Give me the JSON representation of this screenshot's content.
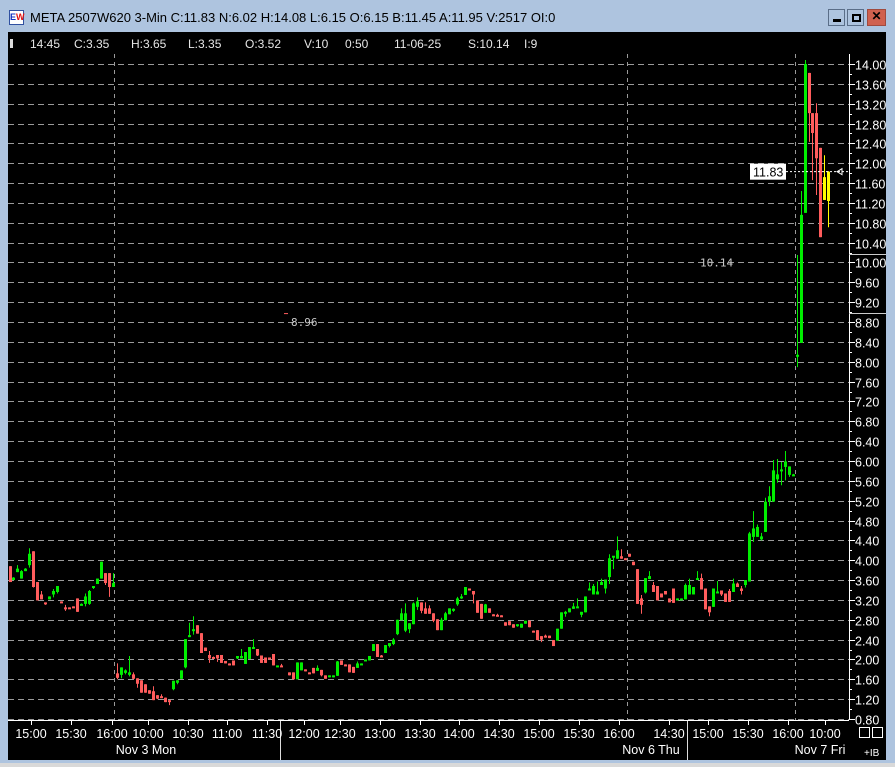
{
  "window": {
    "title": "META 2507W620 3-Min C:11.83 N:6.02 H:14.08 L:6.15 O:6.15 B:11.45 A:11.95 V:2517 OI:0",
    "icon_text": [
      "E",
      "W"
    ],
    "buttons": {
      "minimize": "minimize-icon",
      "maximize": "maximize-icon",
      "close": "✕"
    }
  },
  "infobar": {
    "time": "14:45",
    "close": "C:3.35",
    "high": "H:3.65",
    "low": "L:3.35",
    "open": "O:3.52",
    "volume": "V:10",
    "elapsed": "0:50",
    "date": "11-06-25",
    "strike": "S:10.14",
    "index": "I:9"
  },
  "colors": {
    "up": "#00ee00",
    "down": "#ff5c5c",
    "current": "#ffff00",
    "grid": "#9a9a9a",
    "background": "#000000"
  },
  "price_axis": {
    "labels": [
      "14.00",
      "13.60",
      "13.20",
      "12.80",
      "12.40",
      "12.00",
      "11.60",
      "11.20",
      "10.80",
      "10.40",
      "10.00",
      "9.60",
      "9.20",
      "8.80",
      "8.40",
      "8.00",
      "7.60",
      "7.20",
      "6.80",
      "6.40",
      "6.00",
      "5.60",
      "5.20",
      "4.80",
      "4.40",
      "4.00",
      "3.60",
      "3.20",
      "2.80",
      "2.40",
      "2.00",
      "1.60",
      "1.20",
      "0.80"
    ],
    "current_price": "11.83"
  },
  "annotations": [
    {
      "text": "8.96",
      "price": 8.8
    },
    {
      "text": "10.14",
      "price": 10.0
    }
  ],
  "time_axis": {
    "labels": [
      "15:00",
      "15:30",
      "16:00",
      "10:00",
      "10:30",
      "11:00",
      "11:30",
      "12:00",
      "12:30",
      "13:00",
      "13:30",
      "14:00",
      "14:30",
      "15:00",
      "15:30",
      "16:00",
      "14:30",
      "15:00",
      "15:30",
      "16:00",
      "10:00"
    ],
    "dates": [
      "Nov 3 Mon",
      "Nov 6 Thu",
      "Nov 7 Fri"
    ],
    "corner_button": "+IB"
  },
  "chart_data": {
    "type": "candlestick",
    "ylim": [
      0.8,
      14.0
    ],
    "grid": true,
    "candles_ohlc": [
      [
        3.88,
        3.88,
        3.56,
        3.56
      ],
      [
        3.6,
        3.66,
        3.6,
        3.65
      ],
      [
        3.76,
        3.9,
        3.76,
        3.83
      ],
      [
        3.63,
        3.8,
        3.63,
        3.78
      ],
      [
        3.78,
        3.84,
        3.78,
        3.83
      ],
      [
        3.9,
        4.24,
        3.85,
        4.13
      ],
      [
        4.18,
        4.18,
        3.45,
        3.46
      ],
      [
        3.56,
        3.56,
        3.19,
        3.19
      ],
      [
        3.31,
        3.38,
        3.21,
        3.21
      ],
      [
        3.15,
        3.15,
        3.1,
        3.11
      ],
      [
        3.21,
        3.27,
        3.21,
        3.27
      ],
      [
        3.31,
        3.42,
        3.25,
        3.38
      ],
      [
        3.36,
        3.48,
        3.33,
        3.48
      ],
      [
        3.17,
        3.17,
        3.16,
        3.16
      ],
      [
        3.05,
        3.1,
        2.98,
        3.03
      ],
      [
        3.05,
        3.05,
        3.04,
        3.04
      ],
      [
        3.07,
        3.07,
        3.06,
        3.06
      ],
      [
        3.23,
        3.23,
        2.96,
        2.96
      ],
      [
        3.11,
        3.13,
        3.1,
        3.12
      ],
      [
        3.12,
        3.33,
        3.07,
        3.27
      ],
      [
        3.12,
        3.4,
        3.1,
        3.38
      ],
      [
        3.46,
        3.48,
        3.42,
        3.48
      ],
      [
        3.52,
        3.63,
        3.52,
        3.63
      ],
      [
        3.63,
        3.97,
        3.63,
        3.97
      ],
      [
        3.74,
        3.74,
        3.5,
        3.54
      ],
      [
        3.74,
        3.74,
        3.26,
        3.46
      ],
      [
        3.46,
        3.74,
        3.46,
        3.54
      ],
      [
        1.72,
        1.92,
        1.6,
        1.63
      ],
      [
        1.69,
        1.84,
        1.62,
        1.84
      ],
      [
        1.73,
        1.8,
        1.7,
        1.78
      ],
      [
        1.69,
        2.07,
        1.66,
        1.74
      ],
      [
        1.7,
        1.74,
        1.6,
        1.61
      ],
      [
        1.62,
        1.62,
        1.43,
        1.51
      ],
      [
        1.58,
        1.58,
        1.33,
        1.33
      ],
      [
        1.5,
        1.5,
        1.33,
        1.33
      ],
      [
        1.38,
        1.38,
        1.31,
        1.31
      ],
      [
        1.36,
        1.46,
        1.18,
        1.18
      ],
      [
        1.28,
        1.28,
        1.2,
        1.21
      ],
      [
        1.26,
        1.3,
        1.22,
        1.23
      ],
      [
        1.23,
        1.23,
        1.14,
        1.14
      ],
      [
        1.18,
        1.18,
        1.08,
        1.17
      ],
      [
        1.4,
        1.57,
        1.38,
        1.57
      ],
      [
        1.53,
        1.58,
        1.5,
        1.58
      ],
      [
        1.61,
        1.78,
        1.61,
        1.78
      ],
      [
        1.84,
        2.41,
        1.82,
        2.41
      ],
      [
        2.45,
        2.74,
        2.45,
        2.49
      ],
      [
        2.58,
        2.87,
        2.5,
        2.61
      ],
      [
        2.69,
        2.69,
        2.52,
        2.52
      ],
      [
        2.53,
        2.53,
        2.13,
        2.13
      ],
      [
        2.24,
        2.24,
        2.17,
        2.17
      ],
      [
        2.09,
        2.17,
        1.93,
        2.02
      ],
      [
        2.05,
        2.06,
        2.02,
        2.02
      ],
      [
        2.09,
        2.09,
        1.95,
        2.02
      ],
      [
        2.09,
        2.09,
        1.93,
        1.93
      ],
      [
        1.97,
        1.97,
        1.92,
        1.92
      ],
      [
        1.92,
        1.92,
        1.88,
        1.88
      ],
      [
        1.98,
        1.98,
        1.88,
        1.88
      ],
      [
        2.02,
        2.07,
        2.01,
        2.07
      ],
      [
        2.02,
        2.21,
        2.02,
        2.07
      ],
      [
        1.91,
        2.15,
        1.91,
        2.15
      ],
      [
        2.01,
        2.25,
        2.01,
        2.25
      ],
      [
        2.21,
        2.41,
        2.21,
        2.25
      ],
      [
        2.21,
        2.21,
        2.07,
        2.08
      ],
      [
        2.08,
        2.08,
        1.93,
        1.93
      ],
      [
        2.04,
        2.04,
        1.93,
        1.93
      ],
      [
        2.04,
        2.04,
        2.0,
        2.02
      ],
      [
        2.11,
        2.11,
        1.88,
        1.88
      ],
      [
        1.88,
        1.88,
        1.88,
        1.88
      ],
      [
        1.88,
        1.91,
        1.85,
        1.85
      ],
      null,
      [
        1.74,
        1.74,
        1.68,
        1.68
      ],
      [
        1.74,
        1.74,
        1.6,
        1.6
      ],
      [
        1.6,
        1.94,
        1.6,
        1.94
      ],
      [
        1.78,
        1.94,
        1.78,
        1.94
      ],
      [
        1.8,
        1.8,
        1.76,
        1.77
      ],
      [
        1.74,
        1.74,
        1.72,
        1.72
      ],
      [
        1.83,
        1.83,
        1.72,
        1.72
      ],
      [
        1.77,
        1.88,
        1.77,
        1.83
      ],
      [
        1.79,
        1.79,
        1.66,
        1.68
      ],
      [
        1.68,
        1.68,
        1.61,
        1.61
      ],
      [
        1.64,
        1.68,
        1.64,
        1.68
      ],
      [
        1.64,
        1.68,
        1.64,
        1.68
      ],
      [
        1.67,
        1.97,
        1.67,
        1.96
      ],
      [
        1.98,
        1.98,
        1.89,
        1.89
      ],
      [
        1.9,
        1.9,
        1.89,
        1.89
      ],
      [
        1.9,
        1.9,
        1.74,
        1.74
      ],
      [
        1.85,
        1.85,
        1.73,
        1.73
      ],
      [
        1.83,
        1.96,
        1.83,
        1.92
      ],
      [
        1.92,
        1.92,
        1.91,
        1.92
      ],
      [
        1.98,
        2.0,
        1.98,
        2.0
      ],
      [
        1.98,
        2.07,
        1.98,
        2.07
      ],
      [
        2.17,
        2.31,
        2.17,
        2.31
      ],
      [
        2.31,
        2.31,
        2.05,
        2.05
      ],
      [
        2.08,
        2.09,
        2.05,
        2.05
      ],
      [
        2.13,
        2.29,
        2.13,
        2.29
      ],
      [
        2.27,
        2.33,
        2.24,
        2.33
      ],
      [
        2.31,
        2.43,
        2.29,
        2.4
      ],
      [
        2.51,
        2.8,
        2.49,
        2.8
      ],
      [
        2.79,
        3.03,
        2.79,
        2.93
      ],
      [
        2.58,
        3.13,
        2.55,
        2.93
      ],
      [
        2.61,
        2.73,
        2.53,
        2.73
      ],
      [
        2.71,
        3.15,
        2.71,
        3.13
      ],
      [
        3.06,
        3.25,
        3.0,
        3.17
      ],
      [
        3.15,
        3.15,
        2.93,
        2.98
      ],
      [
        3.03,
        3.15,
        2.92,
        2.92
      ],
      [
        3.03,
        3.09,
        2.92,
        2.92
      ],
      [
        2.93,
        2.93,
        2.75,
        2.78
      ],
      [
        2.81,
        2.81,
        2.59,
        2.59
      ],
      [
        2.59,
        2.84,
        2.59,
        2.8
      ],
      [
        2.79,
        2.96,
        2.79,
        2.93
      ],
      [
        2.91,
        3.03,
        2.91,
        3.03
      ],
      [
        3.02,
        3.03,
        2.96,
        3.02
      ],
      [
        3.11,
        3.26,
        3.08,
        3.23
      ],
      [
        3.25,
        3.32,
        3.22,
        3.27
      ],
      [
        3.3,
        3.46,
        3.3,
        3.46
      ],
      [
        3.43,
        3.43,
        3.42,
        3.42
      ],
      [
        3.38,
        3.38,
        3.13,
        3.31
      ],
      [
        3.19,
        3.19,
        2.94,
        2.94
      ],
      [
        3.12,
        3.12,
        2.82,
        2.82
      ],
      [
        2.94,
        3.12,
        2.94,
        3.11
      ],
      [
        3.03,
        3.03,
        2.94,
        2.94
      ],
      [
        2.91,
        2.91,
        2.9,
        2.9
      ],
      [
        2.9,
        2.92,
        2.88,
        2.88
      ],
      [
        2.89,
        2.89,
        2.88,
        2.88
      ],
      [
        2.75,
        2.75,
        2.68,
        2.68
      ],
      [
        2.77,
        2.77,
        2.69,
        2.69
      ],
      [
        2.71,
        2.71,
        2.64,
        2.64
      ],
      [
        2.68,
        2.71,
        2.66,
        2.71
      ],
      [
        2.64,
        2.72,
        2.64,
        2.72
      ],
      [
        2.72,
        2.78,
        2.72,
        2.78
      ],
      [
        2.78,
        2.78,
        2.65,
        2.65
      ],
      [
        2.58,
        2.58,
        2.57,
        2.57
      ],
      [
        2.59,
        2.59,
        2.39,
        2.39
      ],
      [
        2.47,
        2.47,
        2.35,
        2.4
      ],
      [
        2.48,
        2.5,
        2.44,
        2.44
      ],
      [
        2.48,
        2.48,
        2.43,
        2.43
      ],
      [
        2.39,
        2.39,
        2.27,
        2.27
      ],
      [
        2.38,
        2.62,
        2.38,
        2.62
      ],
      [
        2.62,
        2.95,
        2.62,
        2.95
      ],
      [
        2.92,
        2.98,
        2.86,
        2.96
      ],
      [
        2.95,
        3.03,
        2.95,
        3.03
      ],
      [
        3.02,
        3.14,
        3.02,
        3.07
      ],
      [
        3.07,
        3.23,
        3.07,
        3.07
      ],
      [
        2.9,
        2.96,
        2.85,
        2.96
      ],
      [
        2.95,
        3.27,
        2.95,
        3.27
      ],
      [
        3.39,
        3.55,
        3.39,
        3.43
      ],
      [
        3.31,
        3.52,
        3.31,
        3.48
      ],
      [
        3.31,
        3.57,
        3.31,
        3.37
      ],
      [
        3.5,
        3.63,
        3.5,
        3.56
      ],
      [
        3.43,
        3.61,
        3.33,
        3.61
      ],
      [
        3.66,
        4.12,
        3.52,
        4.04
      ],
      [
        4.08,
        4.08,
        3.82,
        4.09
      ],
      [
        4.03,
        4.48,
        4.03,
        4.2
      ],
      [
        4.08,
        4.22,
        4.03,
        4.03
      ],
      [
        4.04,
        4.04,
        4.03,
        4.03
      ],
      [
        4.13,
        4.13,
        4.07,
        4.07
      ],
      [
        3.97,
        3.97,
        3.9,
        3.9
      ],
      [
        3.82,
        3.82,
        3.12,
        3.12
      ],
      [
        3.23,
        3.3,
        2.92,
        3.1
      ],
      [
        3.35,
        3.64,
        3.33,
        3.64
      ],
      [
        3.62,
        3.78,
        3.62,
        3.68
      ],
      [
        3.5,
        3.56,
        3.36,
        3.36
      ],
      [
        3.48,
        3.48,
        3.19,
        3.19
      ],
      [
        3.33,
        3.33,
        3.25,
        3.25
      ],
      [
        3.38,
        3.38,
        3.31,
        3.31
      ],
      [
        3.23,
        3.23,
        3.15,
        3.15
      ],
      [
        3.43,
        3.43,
        3.14,
        3.14
      ],
      [
        3.23,
        3.23,
        3.22,
        3.23
      ],
      [
        3.23,
        3.23,
        3.22,
        3.23
      ],
      [
        3.21,
        3.53,
        3.21,
        3.5
      ],
      [
        3.31,
        3.63,
        3.31,
        3.5
      ],
      [
        3.31,
        3.46,
        3.31,
        3.46
      ],
      [
        3.63,
        3.78,
        3.63,
        3.64
      ],
      [
        3.64,
        3.73,
        3.41,
        3.41
      ],
      [
        3.43,
        3.43,
        3.01,
        3.01
      ],
      [
        3.07,
        3.07,
        2.87,
        2.95
      ],
      [
        3.06,
        3.43,
        3.06,
        3.43
      ],
      [
        3.36,
        3.58,
        3.36,
        3.37
      ],
      [
        3.39,
        3.39,
        3.28,
        3.31
      ],
      [
        3.33,
        3.33,
        3.16,
        3.16
      ],
      [
        3.38,
        3.42,
        3.16,
        3.16
      ],
      [
        3.36,
        3.63,
        3.36,
        3.53
      ],
      [
        3.53,
        3.55,
        3.46,
        3.46
      ],
      [
        3.43,
        3.48,
        3.31,
        3.38
      ],
      [
        3.5,
        3.6,
        3.45,
        3.6
      ],
      [
        3.57,
        4.57,
        3.57,
        4.54
      ],
      [
        4.47,
        4.99,
        4.37,
        4.64
      ],
      [
        4.47,
        4.72,
        4.47,
        4.67
      ],
      [
        4.42,
        4.55,
        4.4,
        4.48
      ],
      [
        4.57,
        5.26,
        4.57,
        5.18
      ],
      [
        5.18,
        5.49,
        5.09,
        5.29
      ],
      [
        5.18,
        6.02,
        5.18,
        5.81
      ],
      [
        5.63,
        6.04,
        5.56,
        5.73
      ],
      [
        5.82,
        5.98,
        5.51,
        5.83
      ],
      [
        5.88,
        6.2,
        5.61,
        5.99
      ],
      [
        5.72,
        5.89,
        5.68,
        5.89
      ],
      [
        5.73,
        5.74,
        5.72,
        5.73
      ],
      [
        8.13,
        10.15,
        7.89,
        8.14
      ],
      [
        8.38,
        11.44,
        8.38,
        10.96
      ],
      [
        11.0,
        14.08,
        11.0,
        14.0
      ],
      [
        13.82,
        13.82,
        12.43,
        13.01
      ],
      [
        13.01,
        13.01,
        11.66,
        12.61
      ],
      [
        13.01,
        13.21,
        11.36,
        12.1
      ],
      [
        12.31,
        12.31,
        10.51,
        10.51
      ],
      [
        11.26,
        12.16,
        11.26,
        11.72
      ],
      [
        11.24,
        11.84,
        10.71,
        11.83
      ]
    ],
    "current_candles": 2
  }
}
